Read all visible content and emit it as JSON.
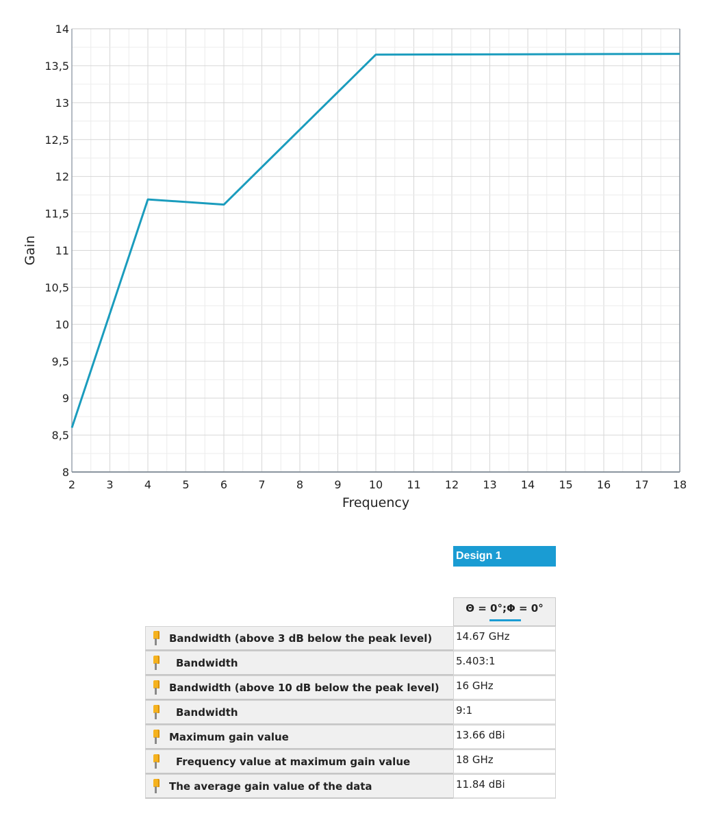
{
  "chart_data": {
    "type": "line",
    "xlabel": "Frequency",
    "ylabel": "Gain",
    "xlim": [
      2,
      18
    ],
    "ylim": [
      8,
      14
    ],
    "xticks": [
      "2",
      "3",
      "4",
      "5",
      "6",
      "7",
      "8",
      "9",
      "10",
      "11",
      "12",
      "13",
      "14",
      "15",
      "16",
      "17",
      "18"
    ],
    "yticks": [
      "8",
      "8,5",
      "9",
      "9,5",
      "10",
      "10,5",
      "11",
      "11,5",
      "12",
      "12,5",
      "13",
      "13,5",
      "14"
    ],
    "grid": true,
    "series": [
      {
        "color": "#1a9cbd",
        "x": [
          2,
          4,
          6,
          10,
          18
        ],
        "y": [
          8.6,
          11.69,
          11.62,
          13.65,
          13.66
        ]
      }
    ]
  },
  "results": {
    "design_label": "Design 1",
    "column_header": "Θ = 0°;Φ = 0°",
    "rows": [
      {
        "label": "Bandwidth (above 3 dB below the peak level)",
        "value": "14.67 GHz"
      },
      {
        "label": "Bandwidth",
        "value": "5.403:1"
      },
      {
        "label": "Bandwidth (above 10 dB below the peak level)",
        "value": "16 GHz"
      },
      {
        "label": "Bandwidth",
        "value": "9:1"
      },
      {
        "label": "Maximum gain value",
        "value": "13.66 dBi"
      },
      {
        "label": "Frequency value at maximum gain value",
        "value": "18 GHz"
      },
      {
        "label": "The average gain value of the data",
        "value": "11.84 dBi"
      }
    ]
  },
  "icons": {
    "row_marker": "pin-icon"
  }
}
